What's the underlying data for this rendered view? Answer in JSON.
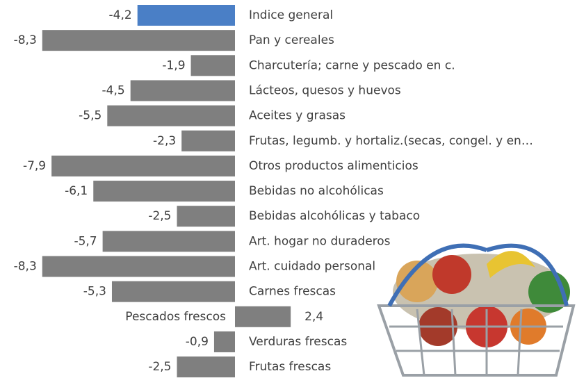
{
  "chart_data": {
    "type": "bar",
    "orientation": "horizontal",
    "categories": [
      "Indice general",
      "Pan y cereales",
      "Charcutería; carne y pescado en c.",
      "Lácteos, quesos y huevos",
      "Aceites y grasas",
      "Frutas, legumb. y hortaliz.(secas,  congel. y en…",
      "Otros productos alimenticios",
      "Bebidas no alcohólicas",
      "Bebidas alcohólicas y tabaco",
      "Art. hogar no duraderos",
      "Art. cuidado personal",
      "Carnes frescas",
      "Pescados frescos",
      "Verduras frescas",
      "Frutas frescas"
    ],
    "values": [
      -4.2,
      -8.3,
      -1.9,
      -4.5,
      -5.5,
      -2.3,
      -7.9,
      -6.1,
      -2.5,
      -5.7,
      -8.3,
      -5.3,
      2.4,
      -0.9,
      -2.5
    ],
    "value_labels": [
      "-4,2",
      "-8,3",
      "-1,9",
      "-4,5",
      "-5,5",
      "-2,3",
      "-7,9",
      "-6,1",
      "-2,5",
      "-5,7",
      "-8,3",
      "-5,3",
      "2,4",
      "-0,9",
      "-2,5"
    ],
    "colors": [
      "#4a7fc6",
      "#7f7f7f",
      "#7f7f7f",
      "#7f7f7f",
      "#7f7f7f",
      "#7f7f7f",
      "#7f7f7f",
      "#7f7f7f",
      "#7f7f7f",
      "#7f7f7f",
      "#7f7f7f",
      "#7f7f7f",
      "#7f7f7f",
      "#7f7f7f",
      "#7f7f7f"
    ]
  }
}
